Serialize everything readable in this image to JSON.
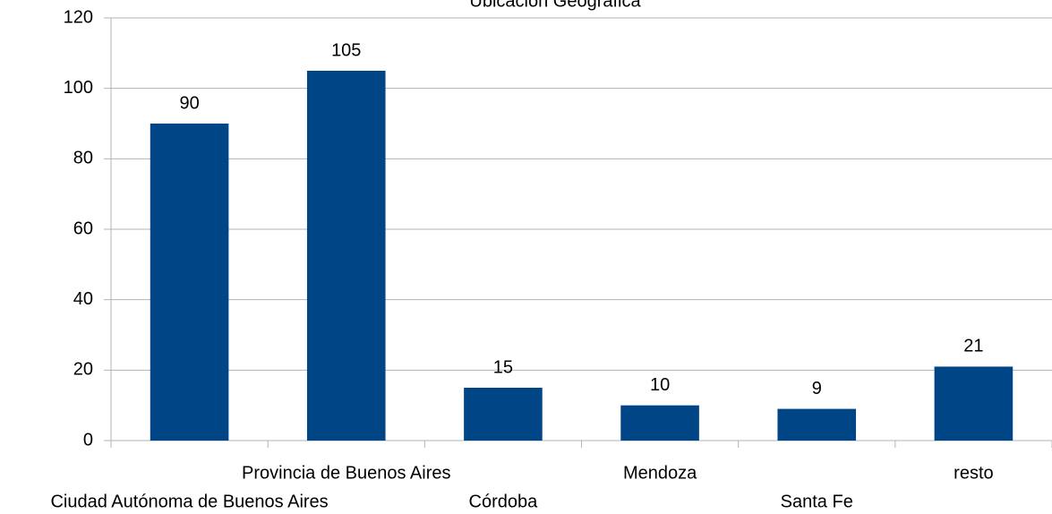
{
  "chart_data": {
    "type": "bar",
    "title": "Ubicación Geográfica",
    "categories": [
      "Ciudad Autónoma de Buenos Aires",
      "Provincia de Buenos Aires",
      "Córdoba",
      "Mendoza",
      "Santa Fe",
      "resto"
    ],
    "values": [
      90,
      105,
      15,
      10,
      9,
      21
    ],
    "color": "#004586",
    "ylim": [
      0,
      120
    ],
    "yticks": [
      0,
      20,
      40,
      60,
      80,
      100,
      120
    ],
    "grid": true
  }
}
